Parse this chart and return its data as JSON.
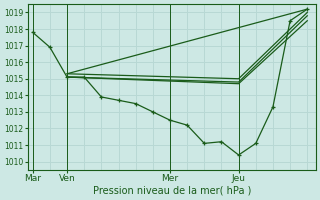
{
  "background_color": "#cde8e4",
  "grid_color": "#b8d8d4",
  "line_color": "#1a5c1a",
  "marker_color": "#1a5c1a",
  "xlabel": "Pression niveau de la mer( hPa )",
  "ylim": [
    1009.5,
    1019.5
  ],
  "yticks": [
    1010,
    1011,
    1012,
    1013,
    1014,
    1015,
    1016,
    1017,
    1018,
    1019
  ],
  "xtick_labels": [
    "Mar",
    "Ven",
    "Mer",
    "Jeu"
  ],
  "xtick_positions": [
    0,
    2,
    8,
    12
  ],
  "xlim": [
    -0.3,
    16.5
  ],
  "num_x_steps": 16,
  "series": [
    {
      "x": [
        0,
        1,
        2,
        3,
        4,
        5,
        6,
        7,
        8,
        9,
        10,
        11,
        12,
        13,
        14,
        15,
        16
      ],
      "y": [
        1017.8,
        1016.9,
        1015.1,
        1015.1,
        1013.9,
        1013.7,
        1013.5,
        1013.0,
        1012.5,
        1012.2,
        1011.1,
        1011.2,
        1010.4,
        1011.1,
        1013.3,
        1018.5,
        1019.2
      ],
      "with_markers": true
    },
    {
      "x": [
        2,
        16
      ],
      "y": [
        1015.3,
        1019.2
      ],
      "with_markers": false
    },
    {
      "x": [
        2,
        12,
        16
      ],
      "y": [
        1015.3,
        1015.0,
        1019.0
      ],
      "with_markers": false
    },
    {
      "x": [
        2,
        12,
        16
      ],
      "y": [
        1015.1,
        1014.8,
        1018.8
      ],
      "with_markers": false
    },
    {
      "x": [
        2,
        12,
        16
      ],
      "y": [
        1015.1,
        1014.7,
        1018.5
      ],
      "with_markers": false
    }
  ],
  "vlines": [
    0,
    2,
    8,
    12
  ]
}
